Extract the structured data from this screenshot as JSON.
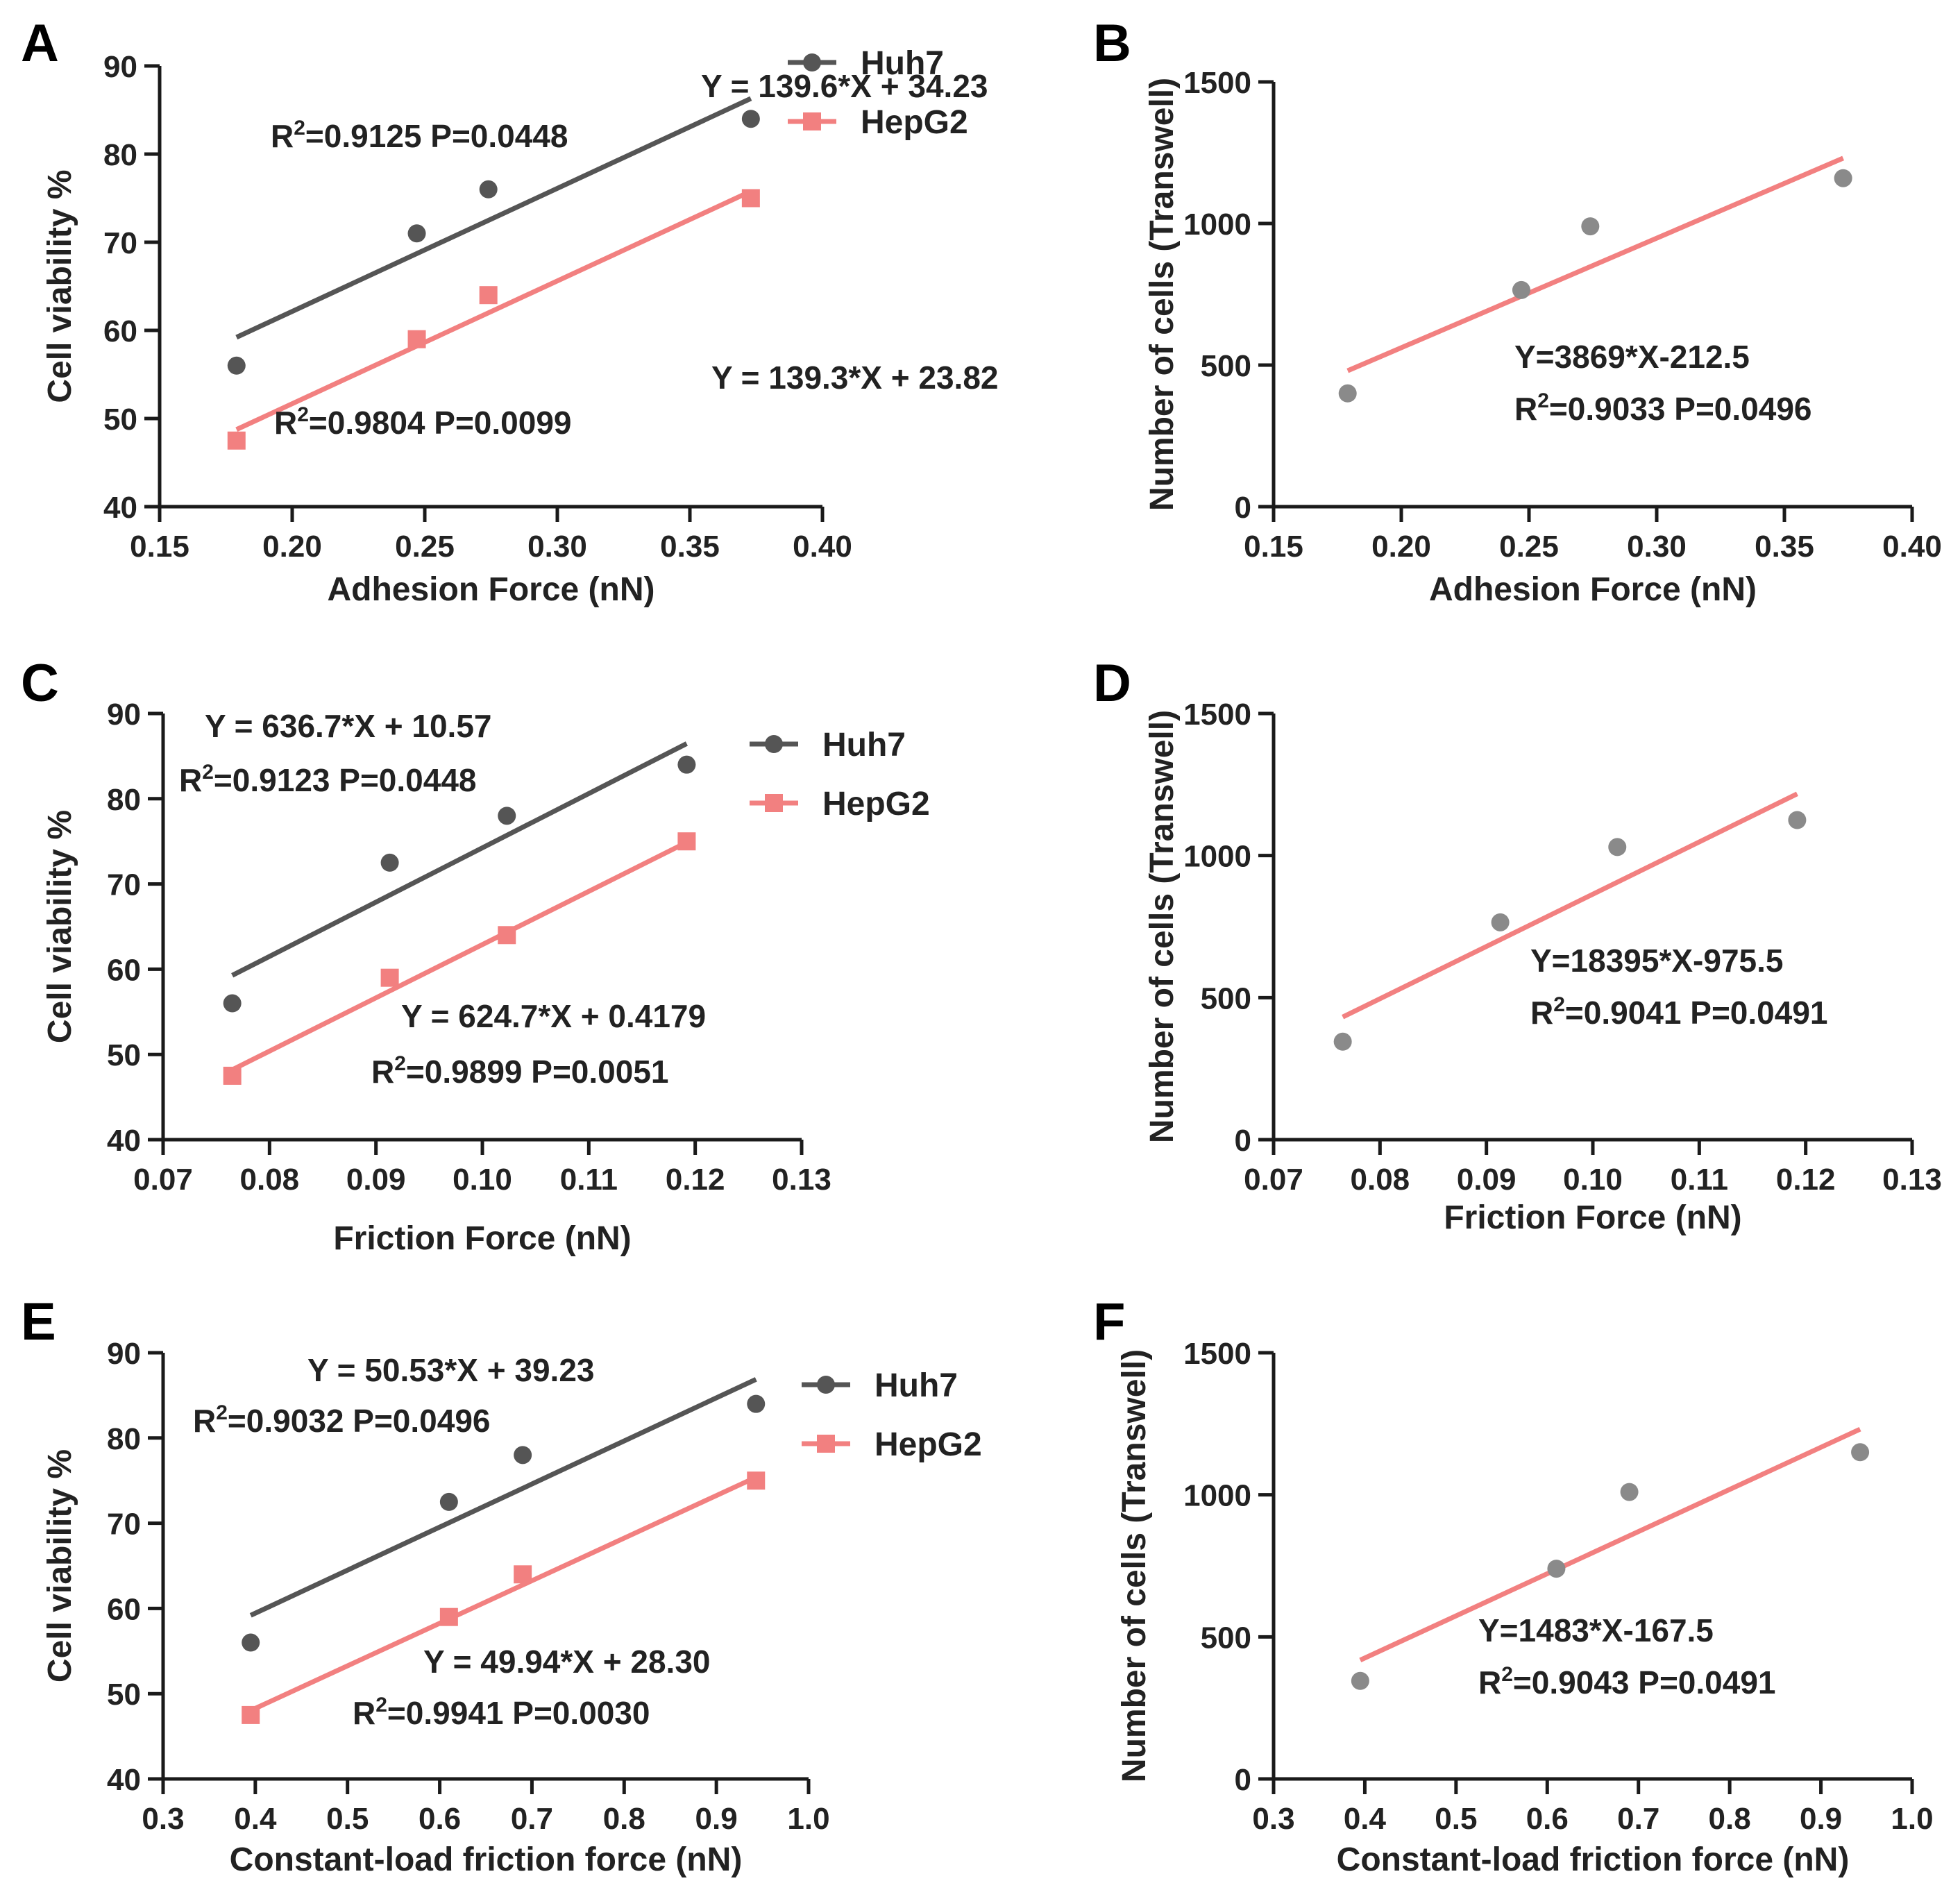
{
  "figure": {
    "colors": {
      "huh7": "#555555",
      "hepg2": "#f28080",
      "scatter_gray": "#8a8a8a",
      "axis": "#1a1a1a"
    }
  },
  "chart_data": [
    {
      "panel": "A",
      "type": "scatter",
      "xlabel": "Adhesion Force (nN)",
      "ylabel": "Cell viability  %",
      "xlim": [
        0.15,
        0.4
      ],
      "ylim": [
        40,
        90
      ],
      "x_ticks": [
        "0.15",
        "0.20",
        "0.25",
        "0.30",
        "0.35",
        "0.40"
      ],
      "y_ticks": [
        "40",
        "50",
        "60",
        "70",
        "80",
        "90"
      ],
      "legend": [
        "Huh7",
        "HepG2"
      ],
      "series": [
        {
          "name": "Huh7",
          "color": "#555555",
          "marker": "circle",
          "x": [
            0.179,
            0.247,
            0.274,
            0.373
          ],
          "y": [
            56,
            71,
            76,
            84
          ],
          "fit": {
            "slope": 139.6,
            "intercept": 34.23
          },
          "equation": "Y = 139.6*X + 34.23",
          "stats": "=0.9125 P=0.0448"
        },
        {
          "name": "HepG2",
          "color": "#f28080",
          "marker": "square",
          "x": [
            0.179,
            0.247,
            0.274,
            0.373
          ],
          "y": [
            47.5,
            59,
            64,
            75
          ],
          "fit": {
            "slope": 139.3,
            "intercept": 23.82
          },
          "equation": "Y = 139.3*X + 23.82",
          "stats": "=0.9804 P=0.0099"
        }
      ]
    },
    {
      "panel": "B",
      "type": "scatter",
      "xlabel": "Adhesion Force (nN)",
      "ylabel": "Number of cells (Transwell)",
      "xlim": [
        0.15,
        0.4
      ],
      "ylim": [
        0,
        1500
      ],
      "x_ticks": [
        "0.15",
        "0.20",
        "0.25",
        "0.30",
        "0.35",
        "0.40"
      ],
      "y_ticks": [
        "0",
        "500",
        "1000",
        "1500"
      ],
      "series": [
        {
          "name": "cells",
          "color": "#8a8a8a",
          "line_color": "#f28080",
          "marker": "circle",
          "x": [
            0.179,
            0.247,
            0.274,
            0.373
          ],
          "y": [
            400,
            765,
            990,
            1160
          ],
          "fit": {
            "slope": 3869,
            "intercept": -212.5
          },
          "equation": "Y=3869*X-212.5",
          "stats": "=0.9033 P=0.0496"
        }
      ]
    },
    {
      "panel": "C",
      "type": "scatter",
      "xlabel": "Friction Force (nN)",
      "ylabel": "Cell viability  %",
      "xlim": [
        0.07,
        0.13
      ],
      "ylim": [
        40,
        90
      ],
      "x_ticks": [
        "0.07",
        "0.08",
        "0.09",
        "0.10",
        "0.11",
        "0.12",
        "0.13"
      ],
      "y_ticks": [
        "40",
        "50",
        "60",
        "70",
        "80",
        "90"
      ],
      "legend": [
        "Huh7",
        "HepG2"
      ],
      "series": [
        {
          "name": "Huh7",
          "color": "#555555",
          "marker": "circle",
          "x": [
            0.0765,
            0.0913,
            0.1023,
            0.1192
          ],
          "y": [
            56,
            72.5,
            78,
            84
          ],
          "fit": {
            "slope": 636.7,
            "intercept": 10.57
          },
          "equation": "Y = 636.7*X + 10.57",
          "stats": "=0.9123 P=0.0448"
        },
        {
          "name": "HepG2",
          "color": "#f28080",
          "marker": "square",
          "x": [
            0.0765,
            0.0913,
            0.1023,
            0.1192
          ],
          "y": [
            47.5,
            59,
            64,
            75
          ],
          "fit": {
            "slope": 624.7,
            "intercept": 0.4179
          },
          "equation": "Y = 624.7*X + 0.4179",
          "stats": "=0.9899 P=0.0051"
        }
      ]
    },
    {
      "panel": "D",
      "type": "scatter",
      "xlabel": "Friction Force (nN)",
      "ylabel": "Number of cells (Transwell)",
      "xlim": [
        0.07,
        0.13
      ],
      "ylim": [
        0,
        1500
      ],
      "x_ticks": [
        "0.07",
        "0.08",
        "0.09",
        "0.10",
        "0.11",
        "0.12",
        "0.13"
      ],
      "y_ticks": [
        "0",
        "500",
        "1000",
        "1500"
      ],
      "series": [
        {
          "name": "cells",
          "color": "#8a8a8a",
          "line_color": "#f28080",
          "marker": "circle",
          "x": [
            0.0765,
            0.0913,
            0.1023,
            0.1192
          ],
          "y": [
            345,
            765,
            1030,
            1125
          ],
          "fit": {
            "slope": 18395,
            "intercept": -975.5
          },
          "equation": "Y=18395*X-975.5",
          "stats": "=0.9041 P=0.0491"
        }
      ]
    },
    {
      "panel": "E",
      "type": "scatter",
      "xlabel": "Constant-load friction force (nN)",
      "ylabel": "Cell viability  %",
      "xlim": [
        0.3,
        1.0
      ],
      "ylim": [
        40,
        90
      ],
      "x_ticks": [
        "0.3",
        "0.4",
        "0.5",
        "0.6",
        "0.7",
        "0.8",
        "0.9",
        "1.0"
      ],
      "y_ticks": [
        "40",
        "50",
        "60",
        "70",
        "80",
        "90"
      ],
      "legend": [
        "Huh7",
        "HepG2"
      ],
      "series": [
        {
          "name": "Huh7",
          "color": "#555555",
          "marker": "circle",
          "x": [
            0.395,
            0.61,
            0.69,
            0.943
          ],
          "y": [
            56,
            72.5,
            78,
            84
          ],
          "fit": {
            "slope": 50.53,
            "intercept": 39.23
          },
          "equation": "Y = 50.53*X + 39.23",
          "stats": "=0.9032 P=0.0496"
        },
        {
          "name": "HepG2",
          "color": "#f28080",
          "marker": "square",
          "x": [
            0.395,
            0.61,
            0.69,
            0.943
          ],
          "y": [
            47.5,
            59,
            64,
            75
          ],
          "fit": {
            "slope": 49.94,
            "intercept": 28.3
          },
          "equation": "Y = 49.94*X + 28.30",
          "stats": "=0.9941 P=0.0030"
        }
      ]
    },
    {
      "panel": "F",
      "type": "scatter",
      "xlabel": "Constant-load friction force (nN)",
      "ylabel": "Number of cells (Transwell)",
      "xlim": [
        0.3,
        1.0
      ],
      "ylim": [
        0,
        1500
      ],
      "x_ticks": [
        "0.3",
        "0.4",
        "0.5",
        "0.6",
        "0.7",
        "0.8",
        "0.9",
        "1.0"
      ],
      "y_ticks": [
        "0",
        "500",
        "1000",
        "1500"
      ],
      "series": [
        {
          "name": "cells",
          "color": "#8a8a8a",
          "line_color": "#f28080",
          "marker": "circle",
          "x": [
            0.395,
            0.61,
            0.69,
            0.943
          ],
          "y": [
            345,
            740,
            1010,
            1150
          ],
          "fit": {
            "slope": 1483,
            "intercept": -167.5
          },
          "equation": "Y=1483*X-167.5",
          "stats": "=0.9043 P=0.0491"
        }
      ]
    }
  ]
}
